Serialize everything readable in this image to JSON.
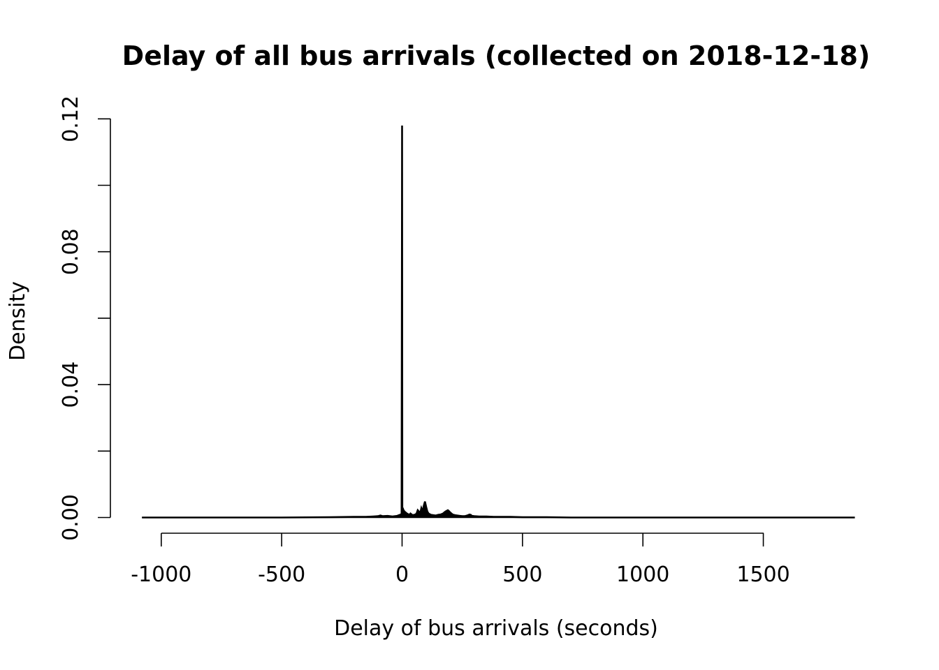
{
  "chart_data": {
    "type": "area",
    "title": "Delay of all bus arrivals (collected on 2018-12-18)",
    "xlabel": "Delay of bus arrivals (seconds)",
    "ylabel": "Density",
    "xlim": [
      -1100,
      1900
    ],
    "ylim": [
      0,
      0.12
    ],
    "x_ticks": [
      -1000,
      -500,
      0,
      500,
      1000,
      1500
    ],
    "x_tick_labels": [
      "-1000",
      "-500",
      "0",
      "500",
      "1000",
      "1500"
    ],
    "y_ticks": [
      0,
      0.02,
      0.04,
      0.06,
      0.08,
      0.1,
      0.12
    ],
    "y_tick_labels": [
      "0.00",
      "",
      "0.04",
      "",
      "0.08",
      "",
      "0.12"
    ],
    "grid": false,
    "legend": "none",
    "line_color": "#000000",
    "series": [
      {
        "x": [
          -1080,
          -800,
          -500,
          -300,
          -200,
          -150,
          -120,
          -100,
          -90,
          -80,
          -60,
          -40,
          -20,
          -10,
          -5,
          -2,
          0,
          1,
          2,
          4,
          6,
          10,
          15,
          20,
          25,
          30,
          35,
          40,
          45,
          50,
          55,
          60,
          65,
          70,
          75,
          80,
          85,
          90,
          95,
          100,
          105,
          110,
          115,
          120,
          130,
          140,
          150,
          160,
          170,
          180,
          190,
          195,
          200,
          205,
          210,
          220,
          230,
          240,
          250,
          260,
          270,
          280,
          285,
          290,
          300,
          320,
          350,
          380,
          400,
          450,
          500,
          600,
          700,
          800,
          1000,
          1200,
          1500,
          1880
        ],
        "y": [
          0,
          0,
          0,
          0.0001,
          0.0002,
          0.0002,
          0.0003,
          0.0004,
          0.0006,
          0.0004,
          0.0005,
          0.0003,
          0.0005,
          0.0008,
          0.0009,
          0.0012,
          0.118,
          0.003,
          0.0025,
          0.0026,
          0.0022,
          0.0018,
          0.0015,
          0.0012,
          0.001,
          0.0008,
          0.0012,
          0.0009,
          0.0007,
          0.0008,
          0.0009,
          0.0012,
          0.0022,
          0.0018,
          0.0012,
          0.0028,
          0.0018,
          0.0035,
          0.0048,
          0.0032,
          0.0018,
          0.0012,
          0.001,
          0.0008,
          0.0007,
          0.0006,
          0.0008,
          0.0009,
          0.0012,
          0.0018,
          0.0022,
          0.0019,
          0.0015,
          0.0012,
          0.0009,
          0.0007,
          0.0006,
          0.0005,
          0.0004,
          0.0004,
          0.0006,
          0.0009,
          0.0008,
          0.0005,
          0.0004,
          0.0003,
          0.0003,
          0.0002,
          0.0002,
          0.0002,
          0.0001,
          0.0001,
          0,
          0,
          0,
          0,
          0,
          0
        ]
      }
    ]
  }
}
